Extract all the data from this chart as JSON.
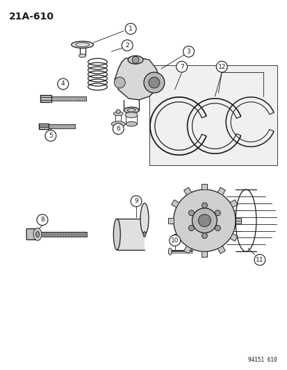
{
  "title": "21A-610",
  "background_color": "#ffffff",
  "line_color": "#1a1a1a",
  "diagram_id": "94151 610",
  "fig_width": 4.14,
  "fig_height": 5.33,
  "dpi": 100
}
